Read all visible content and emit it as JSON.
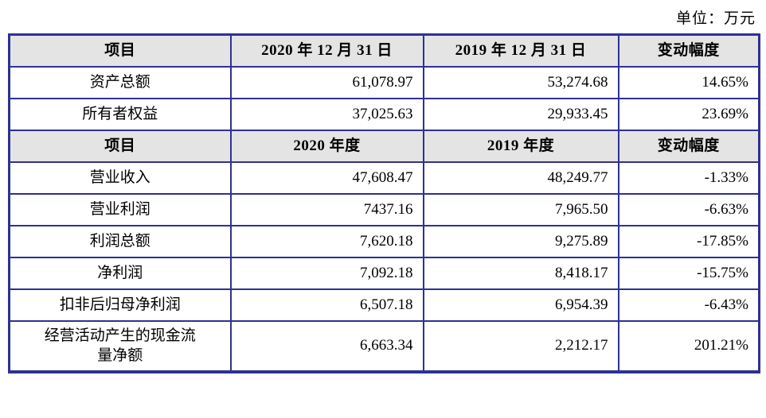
{
  "unit_label": "单位：万元",
  "colors": {
    "border": "#2e3192",
    "header_bg": "#e4e4e4",
    "text": "#000000",
    "page_bg": "#ffffff"
  },
  "table": {
    "sections": [
      {
        "header": [
          "项目",
          "2020 年 12 月 31 日",
          "2019 年 12 月 31 日",
          "变动幅度"
        ],
        "rows": [
          [
            "资产总额",
            "61,078.97",
            "53,274.68",
            "14.65%"
          ],
          [
            "所有者权益",
            "37,025.63",
            "29,933.45",
            "23.69%"
          ]
        ]
      },
      {
        "header": [
          "项目",
          "2020 年度",
          "2019 年度",
          "变动幅度"
        ],
        "rows": [
          [
            "营业收入",
            "47,608.47",
            "48,249.77",
            "-1.33%"
          ],
          [
            "营业利润",
            "7437.16",
            "7,965.50",
            "-6.63%"
          ],
          [
            "利润总额",
            "7,620.18",
            "9,275.89",
            "-17.85%"
          ],
          [
            "净利润",
            "7,092.18",
            "8,418.17",
            "-15.75%"
          ],
          [
            "扣非后归母净利润",
            "6,507.18",
            "6,954.39",
            "-6.43%"
          ],
          [
            "经营活动产生的现金流量净额",
            "6,663.34",
            "2,212.17",
            "201.21%"
          ]
        ]
      }
    ]
  }
}
